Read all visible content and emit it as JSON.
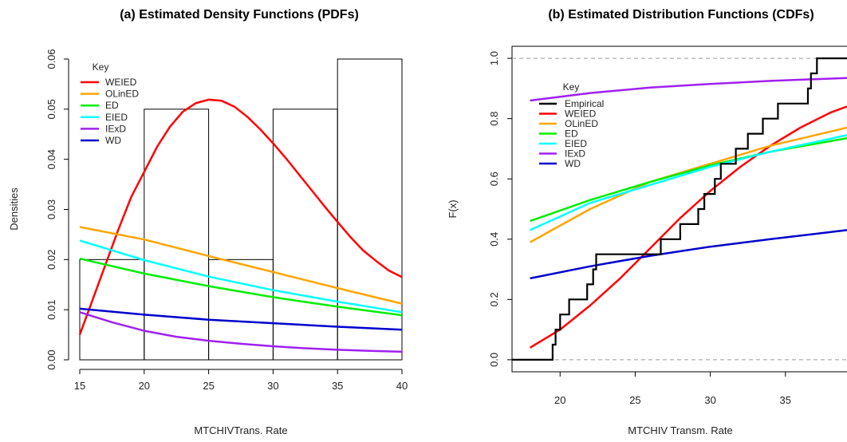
{
  "chart_data": [
    {
      "type": "line",
      "title": "(a) Estimated Density Functions (PDFs)",
      "xlabel": "MTCHIVTrans. Rate",
      "ylabel": "Densities",
      "xlim": [
        15,
        40
      ],
      "ylim": [
        0,
        0.06
      ],
      "xticks": [
        15,
        20,
        25,
        30,
        35,
        40
      ],
      "yticks": [
        0.0,
        0.01,
        0.02,
        0.03,
        0.04,
        0.05,
        0.06
      ],
      "ytick_labels": [
        "0.00",
        "0.01",
        "0.02",
        "0.03",
        "0.04",
        "0.05",
        "0.06"
      ],
      "legend_title": "Key",
      "legend_position": "top-left",
      "histogram": {
        "bins": [
          [
            15,
            20
          ],
          [
            20,
            25
          ],
          [
            25,
            30
          ],
          [
            30,
            35
          ],
          [
            35,
            40
          ]
        ],
        "values": [
          0.02,
          0.05,
          0.02,
          0.05,
          0.06
        ]
      },
      "series": [
        {
          "name": "WEIED",
          "color": "#ff0000",
          "x": [
            15,
            16,
            17,
            18,
            19,
            20,
            21,
            22,
            23,
            24,
            25,
            26,
            27,
            28,
            29,
            30,
            31,
            32,
            33,
            34,
            35,
            36,
            37,
            38,
            39,
            40
          ],
          "y": [
            0.005,
            0.012,
            0.019,
            0.026,
            0.0325,
            0.0375,
            0.0425,
            0.0465,
            0.0495,
            0.0512,
            0.0519,
            0.0517,
            0.0505,
            0.0485,
            0.046,
            0.0432,
            0.0402,
            0.037,
            0.0338,
            0.0306,
            0.0275,
            0.0245,
            0.0218,
            0.0197,
            0.0178,
            0.0165
          ]
        },
        {
          "name": "OLinED",
          "color": "#ffa500",
          "x": [
            15,
            20,
            25,
            30,
            35,
            40
          ],
          "y": [
            0.0265,
            0.024,
            0.0207,
            0.0175,
            0.0143,
            0.0112
          ]
        },
        {
          "name": "ED",
          "color": "#00ee00",
          "x": [
            15,
            20,
            25,
            30,
            35,
            40
          ],
          "y": [
            0.0202,
            0.0172,
            0.0147,
            0.0125,
            0.0106,
            0.0089
          ]
        },
        {
          "name": "EIED",
          "color": "#00ffff",
          "x": [
            15,
            20,
            25,
            30,
            35,
            40
          ],
          "y": [
            0.0238,
            0.0199,
            0.0166,
            0.0139,
            0.0116,
            0.0095
          ]
        },
        {
          "name": "IExD",
          "color": "#a020f0",
          "x": [
            15,
            17.5,
            20,
            22.5,
            25,
            27.5,
            30,
            32.5,
            35,
            37.5,
            40
          ],
          "y": [
            0.0095,
            0.0075,
            0.0058,
            0.0046,
            0.0038,
            0.0032,
            0.0027,
            0.0023,
            0.002,
            0.0018,
            0.0016
          ]
        },
        {
          "name": "WD",
          "color": "#0000cd",
          "x": [
            15,
            20,
            25,
            30,
            35,
            40
          ],
          "y": [
            0.0102,
            0.009,
            0.008,
            0.0073,
            0.0066,
            0.006
          ]
        }
      ]
    },
    {
      "type": "line",
      "title": "(b) Estimated Distribution Functions (CDFs)",
      "xlabel": "MTCHIV Transm. Rate",
      "ylabel": "F(x)",
      "xlim": [
        16.8,
        39.1
      ],
      "ylim": [
        -0.04,
        1.04
      ],
      "xticks": [
        20,
        25,
        30,
        35
      ],
      "yticks": [
        0.0,
        0.2,
        0.4,
        0.6,
        0.8,
        1.0
      ],
      "ytick_labels": [
        "0.0",
        "0.2",
        "0.4",
        "0.6",
        "0.8",
        "1.0"
      ],
      "reference_lines": [
        0,
        1
      ],
      "legend_title": "Key",
      "legend_position": "top-left",
      "empirical": {
        "name": "Empirical",
        "color": "#000000",
        "jumps": [
          19.5,
          19.7,
          20.0,
          20.6,
          21.8,
          22.2,
          22.4,
          26.7,
          28.0,
          29.2,
          29.6,
          30.3,
          30.7,
          31.7,
          32.5,
          33.5,
          34.5,
          36.5,
          36.7,
          37.1
        ],
        "x_start": 16.8,
        "x_end": 39.1
      },
      "series": [
        {
          "name": "WEIED",
          "color": "#ff0000",
          "x": [
            18,
            20,
            22,
            24,
            26,
            28,
            30,
            32,
            34,
            36,
            38,
            39.1
          ],
          "y": [
            0.04,
            0.1,
            0.18,
            0.27,
            0.37,
            0.47,
            0.56,
            0.64,
            0.71,
            0.77,
            0.82,
            0.84
          ]
        },
        {
          "name": "OLinED",
          "color": "#ffa500",
          "x": [
            18,
            22,
            26,
            30,
            34,
            39.1
          ],
          "y": [
            0.39,
            0.5,
            0.59,
            0.65,
            0.71,
            0.77
          ]
        },
        {
          "name": "ED",
          "color": "#00ee00",
          "x": [
            18,
            22,
            26,
            30,
            34,
            39.1
          ],
          "y": [
            0.46,
            0.53,
            0.59,
            0.645,
            0.69,
            0.735
          ]
        },
        {
          "name": "EIED",
          "color": "#00ffff",
          "x": [
            18,
            22,
            26,
            30,
            34,
            39.1
          ],
          "y": [
            0.43,
            0.52,
            0.58,
            0.64,
            0.69,
            0.745
          ]
        },
        {
          "name": "IExD",
          "color": "#a020f0",
          "x": [
            18,
            22,
            26,
            30,
            34,
            39.1
          ],
          "y": [
            0.86,
            0.885,
            0.903,
            0.915,
            0.925,
            0.935
          ]
        },
        {
          "name": "WD",
          "color": "#0000cd",
          "x": [
            18,
            22,
            26,
            30,
            34,
            39.1
          ],
          "y": [
            0.27,
            0.31,
            0.345,
            0.375,
            0.4,
            0.43
          ]
        }
      ]
    }
  ]
}
